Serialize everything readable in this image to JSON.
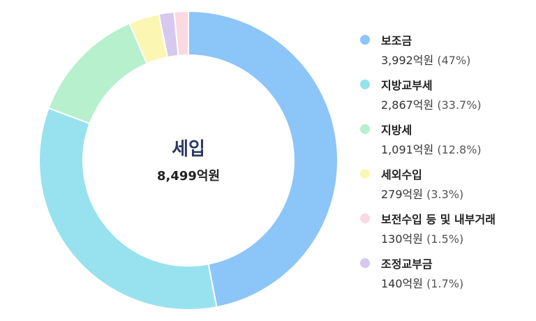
{
  "chart_data": {
    "type": "pie",
    "center_label": "세입",
    "center_total": "8,499억원",
    "series": [
      {
        "name": "보조금",
        "value": 3992,
        "value_label": "3,992억원",
        "percent_label": "(47%)",
        "color": "#8cc5f8"
      },
      {
        "name": "지방교부세",
        "value": 2867,
        "value_label": "2,867억원",
        "percent_label": "(33.7%)",
        "color": "#98e2ef"
      },
      {
        "name": "지방세",
        "value": 1091,
        "value_label": "1,091억원",
        "percent_label": "(12.8%)",
        "color": "#b6f0cd"
      },
      {
        "name": "세외수입",
        "value": 279,
        "value_label": "279억원",
        "percent_label": "(3.3%)",
        "color": "#fcf6b3"
      },
      {
        "name": "조정교부금",
        "value": 140,
        "value_label": "140억원",
        "percent_label": "(1.7%)",
        "color": "#d6c8ef"
      },
      {
        "name": "보전수입 등 및 내부거래",
        "value": 130,
        "value_label": "130억원",
        "percent_label": "(1.5%)",
        "color": "#fbd9e1"
      }
    ],
    "legend_order": [
      0,
      1,
      2,
      3,
      5,
      4
    ]
  }
}
